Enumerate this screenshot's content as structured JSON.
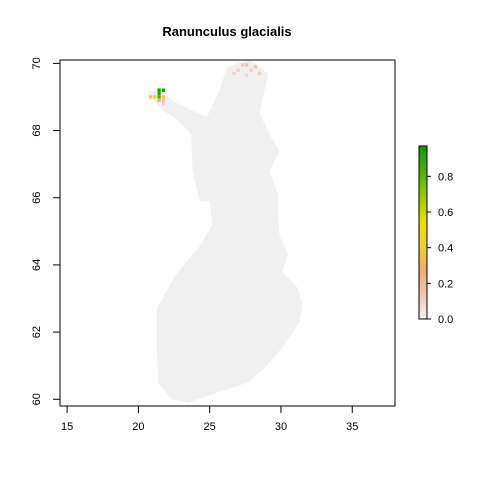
{
  "chart_data": {
    "type": "heatmap",
    "title": "Ranunculus glacialis",
    "xlabel": "",
    "ylabel": "",
    "xlim": [
      14.5,
      38
    ],
    "ylim": [
      59.8,
      70.1
    ],
    "x_ticks": [
      15,
      20,
      25,
      30,
      35
    ],
    "y_ticks": [
      60,
      62,
      64,
      66,
      68,
      70
    ],
    "grid": false,
    "legend": {
      "type": "colorbar",
      "placement": "right",
      "ticks": [
        "0.0",
        "0.2",
        "0.4",
        "0.6",
        "0.8"
      ],
      "range": [
        0,
        0.97
      ],
      "colors": [
        "#f2f2f2",
        "#eec9b8",
        "#eeab6e",
        "#f0cf30",
        "#e8e000",
        "#9ac800",
        "#4bb200",
        "#109a00"
      ]
    },
    "background_value": 0.0,
    "background_color": "#f0f0f0",
    "region_outline_lonlat": [
      [
        20.6,
        69.1
      ],
      [
        21.6,
        69.3
      ],
      [
        22.3,
        68.9
      ],
      [
        23.3,
        68.7
      ],
      [
        24.8,
        68.4
      ],
      [
        25.7,
        69.2
      ],
      [
        26.2,
        69.9
      ],
      [
        27.8,
        70.1
      ],
      [
        29.1,
        69.7
      ],
      [
        28.8,
        69.1
      ],
      [
        28.5,
        68.5
      ],
      [
        29.3,
        67.8
      ],
      [
        29.9,
        67.4
      ],
      [
        29.2,
        66.8
      ],
      [
        29.8,
        66.1
      ],
      [
        29.8,
        65.6
      ],
      [
        29.9,
        64.9
      ],
      [
        30.5,
        64.3
      ],
      [
        30.1,
        63.8
      ],
      [
        31.2,
        63.3
      ],
      [
        31.5,
        62.8
      ],
      [
        31.3,
        62.3
      ],
      [
        30.2,
        61.6
      ],
      [
        29.0,
        61.0
      ],
      [
        27.7,
        60.5
      ],
      [
        25.5,
        60.2
      ],
      [
        23.5,
        59.9
      ],
      [
        22.3,
        60.0
      ],
      [
        21.4,
        60.5
      ],
      [
        21.3,
        61.5
      ],
      [
        21.3,
        62.7
      ],
      [
        22.6,
        63.7
      ],
      [
        24.2,
        64.5
      ],
      [
        25.2,
        65.2
      ],
      [
        25.0,
        65.9
      ],
      [
        24.3,
        65.9
      ],
      [
        23.8,
        66.8
      ],
      [
        23.7,
        67.9
      ],
      [
        22.8,
        68.3
      ],
      [
        21.7,
        68.6
      ],
      [
        20.6,
        69.1
      ]
    ],
    "cells": [
      {
        "lon": 21.45,
        "lat": 69.2,
        "value": 0.95
      },
      {
        "lon": 21.75,
        "lat": 69.2,
        "value": 0.95
      },
      {
        "lon": 21.45,
        "lat": 69.1,
        "value": 0.9
      },
      {
        "lon": 21.45,
        "lat": 69.0,
        "value": 0.85
      },
      {
        "lon": 21.15,
        "lat": 69.0,
        "value": 0.55
      },
      {
        "lon": 21.45,
        "lat": 68.9,
        "value": 0.25
      },
      {
        "lon": 21.75,
        "lat": 69.0,
        "value": 0.45
      },
      {
        "lon": 20.85,
        "lat": 69.0,
        "value": 0.4
      },
      {
        "lon": 21.75,
        "lat": 68.9,
        "value": 0.15
      },
      {
        "lon": 21.75,
        "lat": 68.8,
        "value": 0.12
      },
      {
        "lon": 27.0,
        "lat": 69.8,
        "value": 0.12
      },
      {
        "lon": 27.3,
        "lat": 69.95,
        "value": 0.15
      },
      {
        "lon": 27.6,
        "lat": 69.95,
        "value": 0.18
      },
      {
        "lon": 27.9,
        "lat": 69.8,
        "value": 0.12
      },
      {
        "lon": 28.2,
        "lat": 69.9,
        "value": 0.15
      },
      {
        "lon": 28.5,
        "lat": 69.7,
        "value": 0.12
      },
      {
        "lon": 26.7,
        "lat": 69.7,
        "value": 0.1
      },
      {
        "lon": 27.6,
        "lat": 69.65,
        "value": 0.1
      }
    ]
  }
}
